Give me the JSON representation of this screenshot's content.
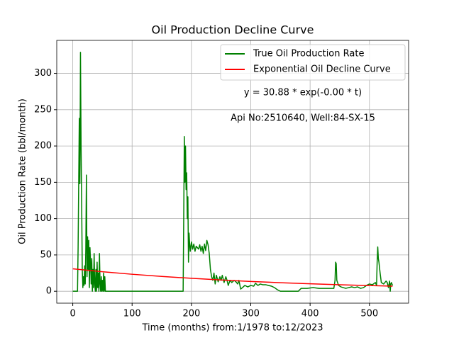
{
  "chart_data": {
    "type": "line",
    "title": "Oil Production Decline Curve",
    "xlabel": "Time (months) from:1/1978 to:12/2023",
    "ylabel": "Oil Production Rate (bbl/month)",
    "annotations": [
      "y = 30.88 * exp(-0.00 * t)",
      "Api No:2510640, Well:84-SX-15"
    ],
    "xlim": [
      -27,
      566
    ],
    "ylim": [
      -16.4,
      345.4
    ],
    "xticks": [
      0,
      100,
      200,
      300,
      400,
      500
    ],
    "yticks": [
      0,
      50,
      100,
      150,
      200,
      250,
      300
    ],
    "grid": true,
    "legend": "upper right",
    "series": [
      {
        "name": "True Oil Production Rate",
        "color": "#008000",
        "x": [
          0,
          8,
          9,
          10,
          11,
          12,
          13,
          14,
          15,
          16,
          17,
          18,
          19,
          20,
          21,
          22,
          23,
          24,
          25,
          26,
          27,
          28,
          29,
          30,
          31,
          32,
          33,
          34,
          35,
          36,
          37,
          38,
          39,
          40,
          41,
          42,
          43,
          44,
          45,
          46,
          47,
          48,
          49,
          50,
          51,
          52,
          53,
          54,
          55,
          56,
          186,
          187,
          188,
          189,
          190,
          191,
          192,
          193,
          194,
          195,
          196,
          197,
          198,
          200,
          202,
          204,
          206,
          208,
          210,
          212,
          214,
          216,
          218,
          220,
          222,
          224,
          226,
          228,
          230,
          232,
          234,
          236,
          238,
          240,
          242,
          245,
          248,
          250,
          252,
          255,
          258,
          260,
          262,
          265,
          268,
          272,
          275,
          278,
          280,
          283,
          286,
          290,
          295,
          300,
          305,
          308,
          312,
          316,
          320,
          325,
          330,
          335,
          340,
          345,
          350,
          360,
          370,
          380,
          385,
          395,
          405,
          415,
          425,
          435,
          440,
          442,
          443,
          444,
          445,
          448,
          452,
          456,
          460,
          465,
          470,
          475,
          480,
          485,
          490,
          495,
          500,
          505,
          510,
          512,
          513,
          514,
          515,
          516,
          518,
          520,
          524,
          528,
          530,
          532,
          534,
          535,
          536,
          537,
          539
        ],
        "values": [
          0,
          0,
          60,
          150,
          238,
          148,
          329,
          200,
          120,
          30,
          5,
          20,
          8,
          35,
          10,
          60,
          160,
          20,
          75,
          30,
          70,
          5,
          60,
          40,
          10,
          45,
          0,
          30,
          5,
          52,
          10,
          0,
          30,
          0,
          40,
          5,
          25,
          0,
          52,
          10,
          0,
          20,
          0,
          15,
          0,
          25,
          0,
          20,
          0,
          0,
          0,
          100,
          213,
          150,
          200,
          140,
          163,
          100,
          130,
          40,
          80,
          65,
          55,
          68,
          58,
          65,
          55,
          62,
          60,
          58,
          64,
          55,
          62,
          52,
          65,
          56,
          70,
          64,
          52,
          30,
          20,
          15,
          25,
          10,
          22,
          13,
          20,
          15,
          22,
          12,
          20,
          15,
          8,
          15,
          12,
          15,
          13,
          10,
          15,
          3,
          5,
          8,
          6,
          8,
          7,
          11,
          8,
          10,
          9,
          9,
          8,
          7,
          5,
          2,
          0,
          0,
          0,
          0,
          4,
          4,
          5,
          4,
          4,
          4,
          4,
          15,
          40,
          38,
          15,
          8,
          6,
          5,
          4,
          5,
          6,
          5,
          6,
          4,
          5,
          8,
          10,
          9,
          12,
          8,
          40,
          61,
          45,
          40,
          25,
          12,
          10,
          14,
          12,
          5,
          14,
          0,
          10,
          12,
          8
        ]
      },
      {
        "name": "Exponential Oil Decline Curve",
        "color": "#ff0000",
        "x": [
          0,
          50,
          100,
          150,
          200,
          250,
          300,
          350,
          400,
          450,
          500,
          539
        ],
        "values": [
          30.88,
          26.9,
          23.4,
          20.4,
          17.8,
          15.5,
          13.5,
          11.8,
          10.3,
          8.9,
          7.8,
          7.0
        ]
      }
    ]
  }
}
